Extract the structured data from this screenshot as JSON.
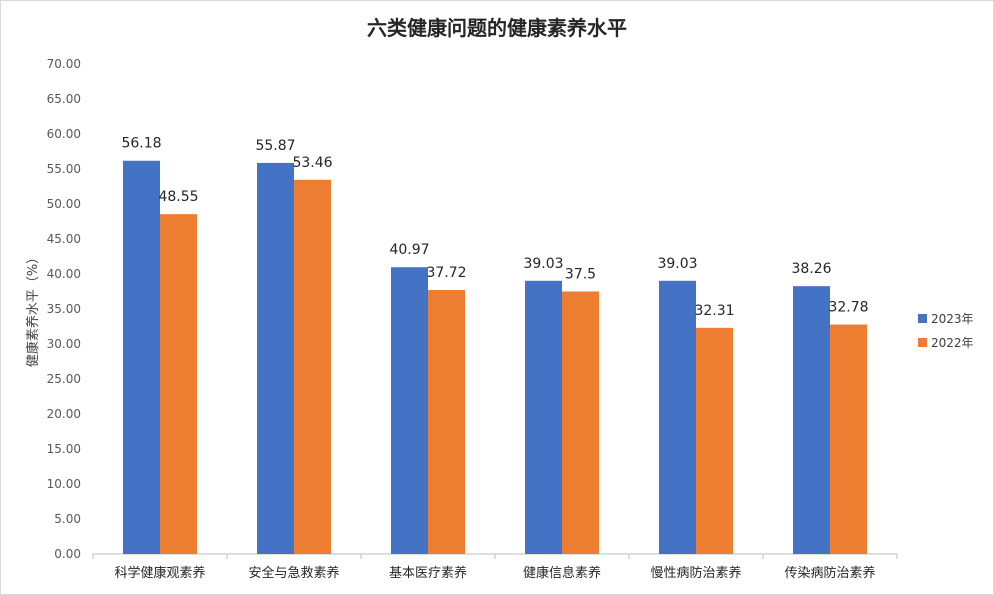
{
  "chart_data": {
    "type": "bar",
    "title": "六类健康问题的健康素养水平",
    "ylabel": "健康素养水平（%）",
    "xlabel": "",
    "ylim": [
      0,
      70
    ],
    "ytick_step": 5,
    "ytick_labels": [
      "0.00",
      "5.00",
      "10.00",
      "15.00",
      "20.00",
      "25.00",
      "30.00",
      "35.00",
      "40.00",
      "45.00",
      "50.00",
      "55.00",
      "60.00",
      "65.00",
      "70.00"
    ],
    "categories": [
      "科学健康观素养",
      "安全与急救素养",
      "基本医疗素养",
      "健康信息素养",
      "慢性病防治素养",
      "传染病防治素养"
    ],
    "series": [
      {
        "name": "2023年",
        "color": "#4472C4",
        "values": [
          56.18,
          55.87,
          40.97,
          39.03,
          39.03,
          38.26
        ],
        "labels": [
          "56.18",
          "55.87",
          "40.97",
          "39.03",
          "39.03",
          "38.26"
        ]
      },
      {
        "name": "2022年",
        "color": "#ED7D31",
        "values": [
          48.55,
          53.46,
          37.72,
          37.5,
          32.31,
          32.78
        ],
        "labels": [
          "48.55",
          "53.46",
          "37.72",
          "37.5",
          "32.31",
          "32.78"
        ]
      }
    ],
    "grid": false,
    "legend_position": "right"
  }
}
